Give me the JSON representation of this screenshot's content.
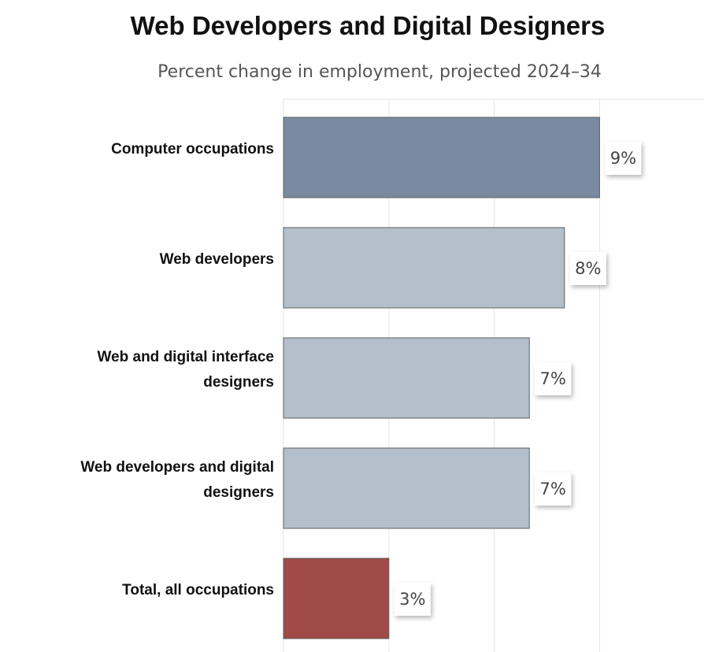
{
  "chart_data": {
    "type": "bar",
    "orientation": "horizontal",
    "title": "Web Developers and Digital Designers",
    "subtitle": "Percent change in employment, projected 2024–34",
    "categories": [
      [
        "Computer occupations"
      ],
      [
        "Web developers"
      ],
      [
        "Web and digital interface",
        "designers"
      ],
      [
        "Web developers and digital",
        "designers"
      ],
      [
        "Total, all occupations"
      ]
    ],
    "values": [
      9,
      8,
      7,
      7,
      3
    ],
    "value_labels": [
      "9%",
      "8%",
      "7%",
      "7%",
      "3%"
    ],
    "colors": [
      "#7a8aa0",
      "#b3bfca",
      "#b3bfca",
      "#b3bfca",
      "#9f4a47"
    ],
    "xlim": [
      0,
      10
    ],
    "grid": true,
    "legend": "none"
  }
}
